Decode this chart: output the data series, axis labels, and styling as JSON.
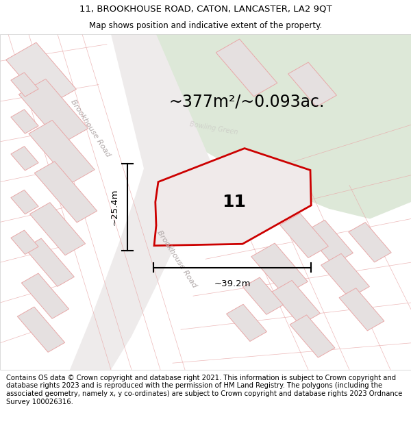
{
  "title_line1": "11, BROOKHOUSE ROAD, CATON, LANCASTER, LA2 9QT",
  "title_line2": "Map shows position and indicative extent of the property.",
  "area_text": "~377m²/~0.093ac.",
  "label_number": "11",
  "dim_vertical": "~25.4m",
  "dim_horizontal": "~39.2m",
  "road_label_upper": "Brookhouse Road",
  "road_label_lower": "Brookhouse Road",
  "bowling_green_label": "Bowling Green",
  "footer_text": "Contains OS data © Crown copyright and database right 2021. This information is subject to Crown copyright and database rights 2023 and is reproduced with the permission of HM Land Registry. The polygons (including the associated geometry, namely x, y co-ordinates) are subject to Crown copyright and database rights 2023 Ordnance Survey 100026316.",
  "map_bg": "#f2eeee",
  "green_color": "#dde8d8",
  "road_fill": "#e8e4e4",
  "building_fill": "#e8e4e4",
  "building_edge": "#e8a8a8",
  "plot_fill": "#f0eaea",
  "plot_edge": "#cc0000",
  "title_fontsize": 9.5,
  "subtitle_fontsize": 8.5,
  "area_fontsize": 17,
  "label_fontsize": 18,
  "dim_fontsize": 9.5,
  "footer_fontsize": 7.2,
  "road_text_color": "#aaaaaa",
  "road_text_size": 8
}
